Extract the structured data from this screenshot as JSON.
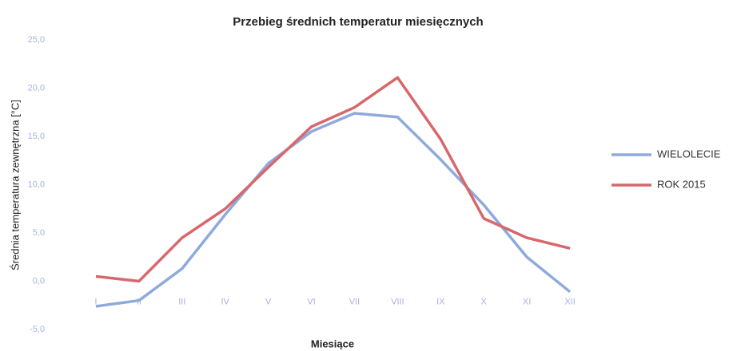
{
  "chart_data": {
    "type": "line",
    "title": "Przebieg średnich temperatur miesięcznych",
    "x_label": "Miesiące",
    "y_label": "Średnia temperatura zewnętrzna [°C]",
    "categories": [
      "I",
      "II",
      "III",
      "IV",
      "V",
      "VI",
      "VII",
      "VIII",
      "IX",
      "X",
      "XI",
      "XII"
    ],
    "series": [
      {
        "name": "WIELOLECIE",
        "color": "#8eaadc",
        "values": [
          -2.6,
          -2.0,
          1.3,
          6.9,
          12.2,
          15.5,
          17.4,
          17.0,
          12.6,
          7.9,
          2.5,
          -1.1
        ]
      },
      {
        "name": "ROK 2015",
        "color": "#d8676b",
        "values": [
          0.5,
          0.0,
          4.5,
          7.5,
          11.8,
          16.0,
          18.0,
          21.1,
          14.7,
          6.5,
          4.5,
          3.4
        ]
      }
    ],
    "ylim": [
      -5,
      25
    ],
    "yticks": [
      {
        "value": -5,
        "label": "-5,0"
      },
      {
        "value": 0,
        "label": "0,0"
      },
      {
        "value": 5,
        "label": "5,0"
      },
      {
        "value": 10,
        "label": "10,0"
      },
      {
        "value": 15,
        "label": "15,0"
      },
      {
        "value": 20,
        "label": "20,0"
      },
      {
        "value": 25,
        "label": "25,0"
      }
    ],
    "grid": false,
    "legend": "right"
  }
}
